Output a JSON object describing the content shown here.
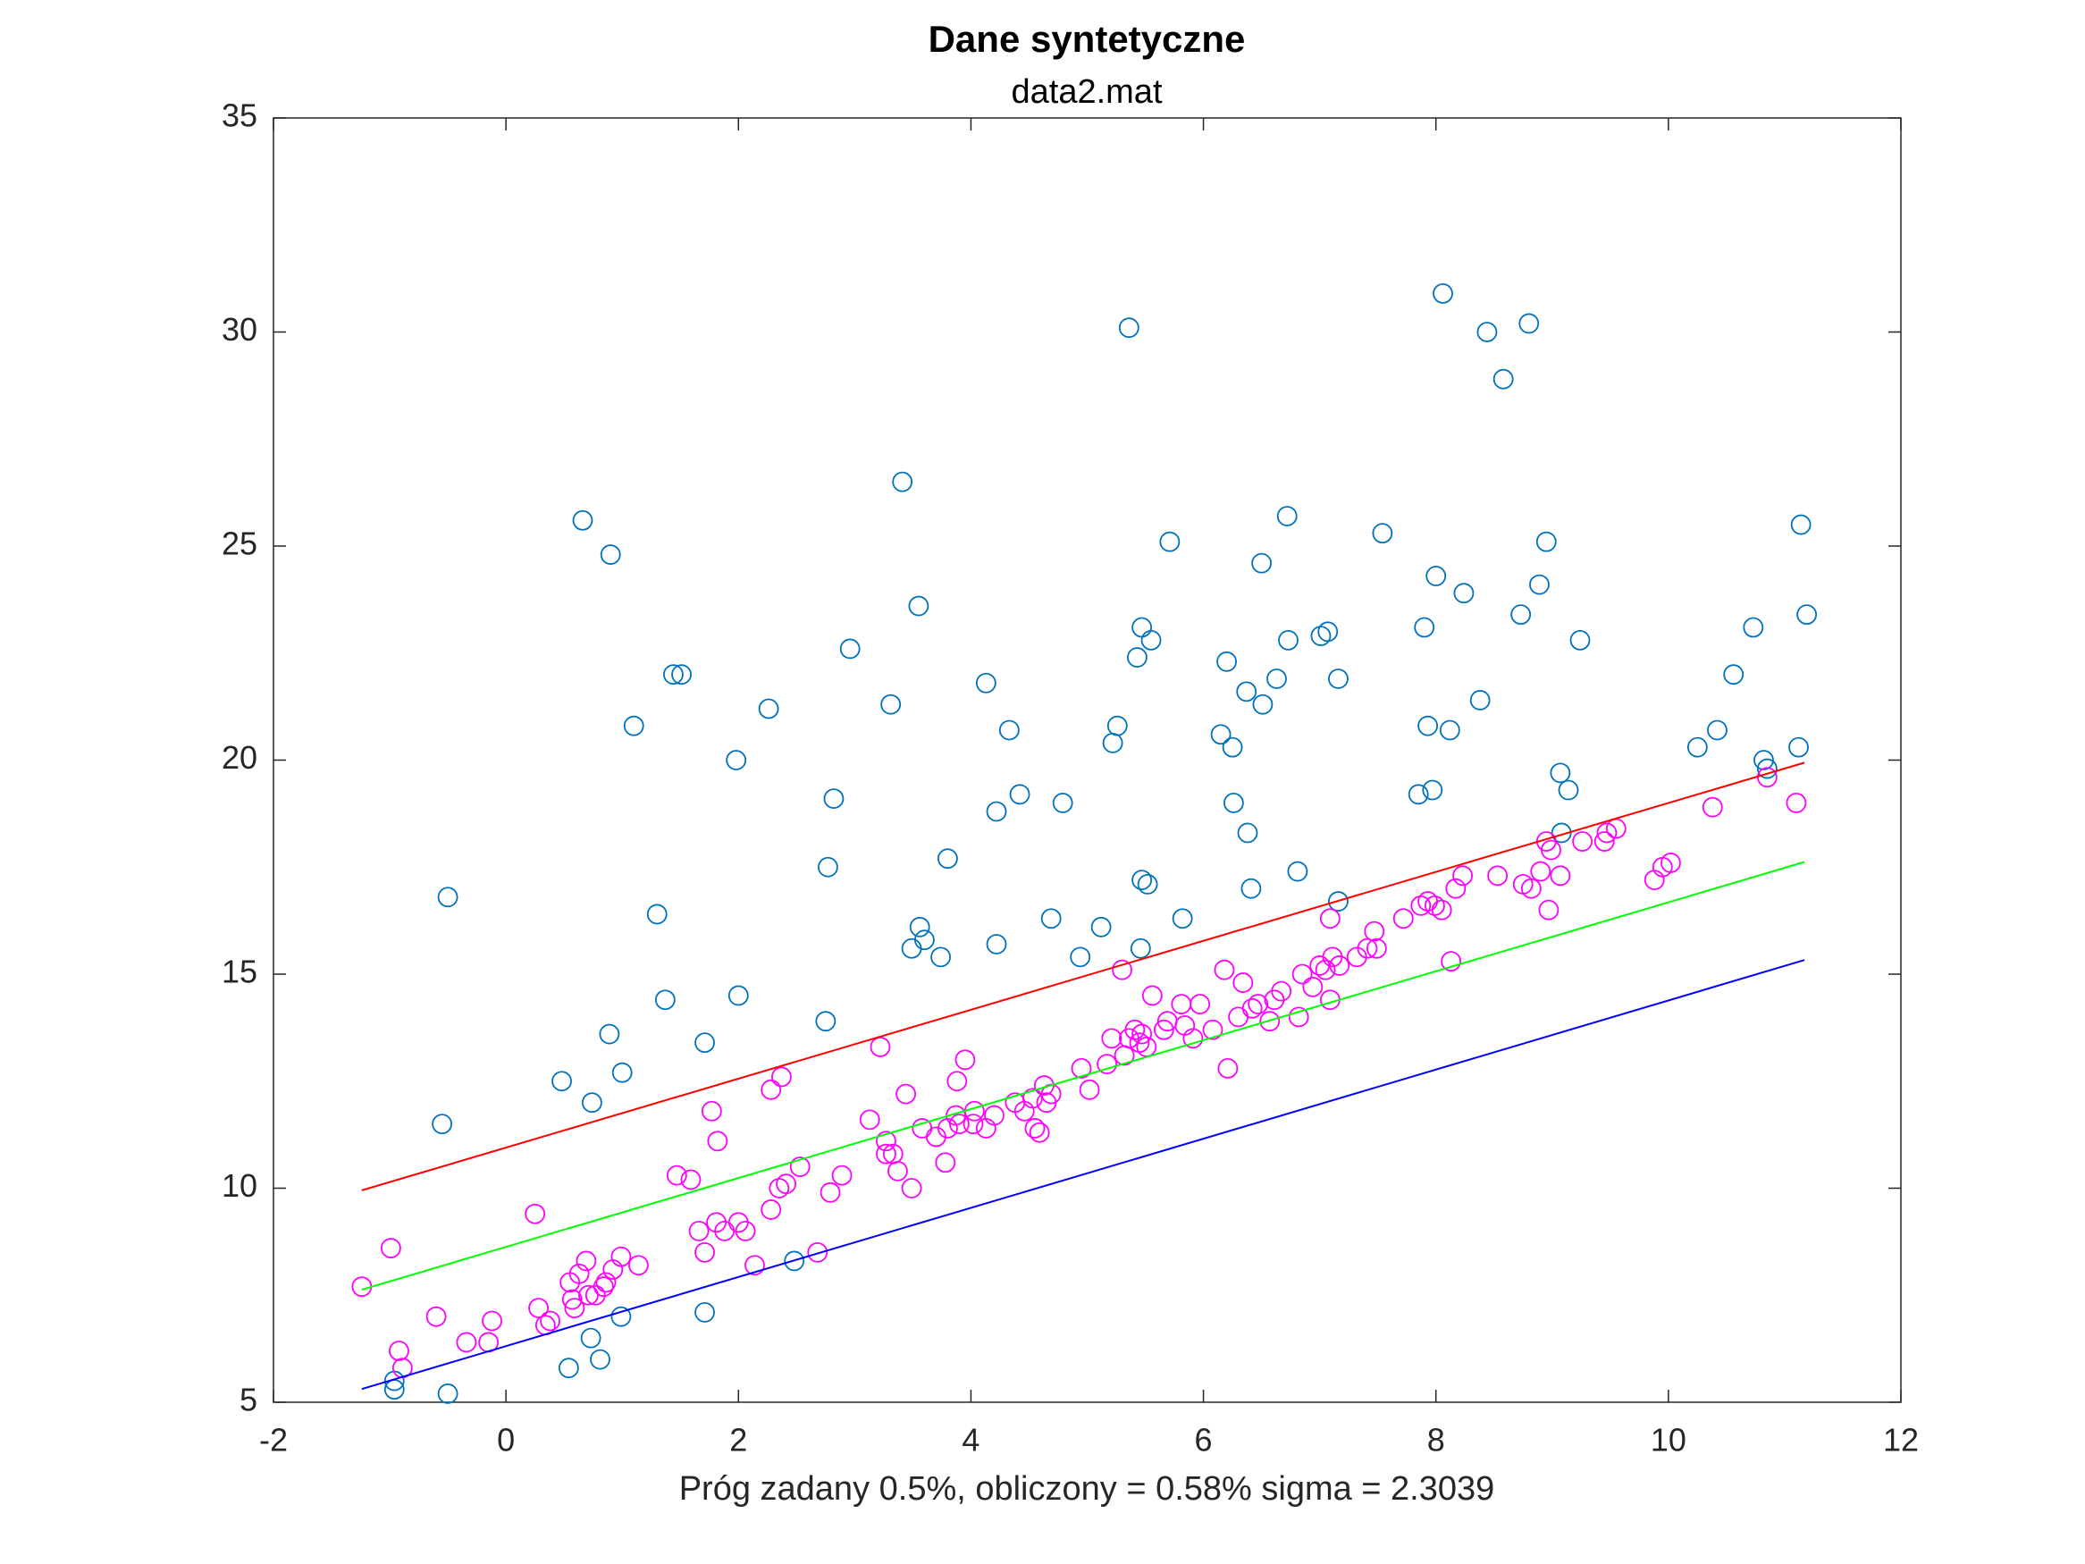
{
  "chart_data": {
    "type": "scatter",
    "title": "Dane syntetyczne",
    "subtitle": "data2.mat",
    "x_label": "Próg zadany 0.5%, obliczony = 0.58% sigma = 2.3039",
    "xlim": [
      -2,
      12
    ],
    "ylim": [
      5,
      35
    ],
    "xticks": [
      -2,
      0,
      2,
      4,
      6,
      8,
      10,
      12
    ],
    "yticks": [
      5,
      10,
      15,
      20,
      25,
      30,
      35
    ],
    "box": true,
    "series": [
      {
        "style": "circle",
        "color": "#0072bd",
        "x": [
          -0.5,
          -0.55,
          -0.96,
          -0.96,
          -0.5,
          0.66,
          0.9,
          0.48,
          0.74,
          0.89,
          1.0,
          1.1,
          1.44,
          1.51,
          1.3,
          1.37,
          1.98,
          2.0,
          1.71,
          1.71,
          0.73,
          0.54,
          0.81,
          0.99,
          2.26,
          2.48,
          2.96,
          2.82,
          2.77,
          2.75,
          3.41,
          3.55,
          3.31,
          3.8,
          3.56,
          3.6,
          3.49,
          3.74,
          4.13,
          4.33,
          4.42,
          4.22,
          4.22,
          4.79,
          4.69,
          4.94,
          5.12,
          5.36,
          5.26,
          5.22,
          5.47,
          5.43,
          5.55,
          5.71,
          5.47,
          5.52,
          5.46,
          5.82,
          6.2,
          6.15,
          6.25,
          6.26,
          6.5,
          6.37,
          6.51,
          6.63,
          6.38,
          6.41,
          6.72,
          6.73,
          7.07,
          7.01,
          7.16,
          6.81,
          7.16,
          7.54,
          8.06,
          8.44,
          8.8,
          8.58,
          8.0,
          8.24,
          7.9,
          8.73,
          8.95,
          8.89,
          9.24,
          8.38,
          7.93,
          8.12,
          7.97,
          7.85,
          9.07,
          9.14,
          9.08,
          11.14,
          11.19,
          10.73,
          10.56,
          10.42,
          10.25,
          11.12,
          10.82,
          10.85
        ],
        "values": [
          16.8,
          11.5,
          5.3,
          5.5,
          5.2,
          25.6,
          24.8,
          12.5,
          12.0,
          13.6,
          12.7,
          20.8,
          22.0,
          22.0,
          16.4,
          14.4,
          20.0,
          14.5,
          13.4,
          7.1,
          6.5,
          5.8,
          6.0,
          7.0,
          21.2,
          8.3,
          22.6,
          19.1,
          17.5,
          13.9,
          26.5,
          23.6,
          21.3,
          17.7,
          16.1,
          15.8,
          15.6,
          15.4,
          21.8,
          20.7,
          19.2,
          18.8,
          15.7,
          19.0,
          16.3,
          15.4,
          16.1,
          30.1,
          20.8,
          20.4,
          23.1,
          22.4,
          22.8,
          25.1,
          17.2,
          17.1,
          15.6,
          16.3,
          22.3,
          20.6,
          20.3,
          19.0,
          24.6,
          21.6,
          21.3,
          21.9,
          18.3,
          17.0,
          25.7,
          22.8,
          23.0,
          22.9,
          21.9,
          17.4,
          16.7,
          25.3,
          30.9,
          30.0,
          30.2,
          28.9,
          24.3,
          23.9,
          23.1,
          23.4,
          25.1,
          24.1,
          22.8,
          21.4,
          20.8,
          20.7,
          19.3,
          19.2,
          19.7,
          19.3,
          18.3,
          25.5,
          23.4,
          23.1,
          22.0,
          20.7,
          20.3,
          20.3,
          20.0,
          19.8
        ]
      },
      {
        "style": "circle",
        "color": "#ff00ff",
        "x": [
          -1.24,
          -0.99,
          -0.92,
          -0.89,
          -0.6,
          -0.34,
          -0.15,
          -0.12,
          0.25,
          0.28,
          0.34,
          0.38,
          0.55,
          0.57,
          0.59,
          0.63,
          0.69,
          0.71,
          0.77,
          0.84,
          0.86,
          0.92,
          0.99,
          1.14,
          1.47,
          1.59,
          1.66,
          1.71,
          1.77,
          1.82,
          1.81,
          1.88,
          2.0,
          2.06,
          2.14,
          2.28,
          2.37,
          2.28,
          2.35,
          2.41,
          2.53,
          2.68,
          2.79,
          2.89,
          3.13,
          3.22,
          3.27,
          3.27,
          3.33,
          3.37,
          3.44,
          3.49,
          3.58,
          3.7,
          3.78,
          3.8,
          3.87,
          3.88,
          3.9,
          3.95,
          4.02,
          4.03,
          4.13,
          4.2,
          4.38,
          4.46,
          4.53,
          4.55,
          4.59,
          4.63,
          4.65,
          4.69,
          4.95,
          5.02,
          5.17,
          5.21,
          5.3,
          5.32,
          5.36,
          5.41,
          5.45,
          5.47,
          5.51,
          5.56,
          5.66,
          5.69,
          5.81,
          5.84,
          5.91,
          5.97,
          6.08,
          6.18,
          6.21,
          6.3,
          6.34,
          6.42,
          6.47,
          6.57,
          6.61,
          6.67,
          6.82,
          6.85,
          6.94,
          7.0,
          7.05,
          7.09,
          7.11,
          7.17,
          7.09,
          7.32,
          7.41,
          7.47,
          7.49,
          7.72,
          7.87,
          7.93,
          7.99,
          8.05,
          8.13,
          8.17,
          8.23,
          8.53,
          8.75,
          8.82,
          8.9,
          8.95,
          8.97,
          8.99,
          9.07,
          9.26,
          9.45,
          9.47,
          9.55,
          9.88,
          9.95,
          10.02,
          10.38,
          10.85,
          11.1
        ],
        "values": [
          7.7,
          8.6,
          6.2,
          5.8,
          7.0,
          6.4,
          6.4,
          6.9,
          9.4,
          7.2,
          6.8,
          6.9,
          7.8,
          7.4,
          7.2,
          8.0,
          8.3,
          7.5,
          7.5,
          7.7,
          7.8,
          8.1,
          8.4,
          8.2,
          10.3,
          10.2,
          9.0,
          8.5,
          11.8,
          11.1,
          9.2,
          9.0,
          9.2,
          9.0,
          8.2,
          12.3,
          12.6,
          9.5,
          10.0,
          10.1,
          10.5,
          8.5,
          9.9,
          10.3,
          11.6,
          13.3,
          11.1,
          10.8,
          10.8,
          10.4,
          12.2,
          10.0,
          11.4,
          11.2,
          10.6,
          11.4,
          11.7,
          12.5,
          11.5,
          13.0,
          11.5,
          11.8,
          11.4,
          11.7,
          12.0,
          11.8,
          12.1,
          11.4,
          11.3,
          12.4,
          12.0,
          12.2,
          12.8,
          12.3,
          12.9,
          13.5,
          15.1,
          13.1,
          13.5,
          13.7,
          13.4,
          13.6,
          13.3,
          14.5,
          13.7,
          13.9,
          14.3,
          13.8,
          13.5,
          14.3,
          13.7,
          15.1,
          12.8,
          14.0,
          14.8,
          14.2,
          14.3,
          13.9,
          14.4,
          14.6,
          14.0,
          15.0,
          14.7,
          15.2,
          15.1,
          14.4,
          15.4,
          15.2,
          16.3,
          15.4,
          15.6,
          16.0,
          15.6,
          16.3,
          16.6,
          16.7,
          16.6,
          16.5,
          15.3,
          17.0,
          17.3,
          17.3,
          17.1,
          17.0,
          17.4,
          18.1,
          16.5,
          17.9,
          17.3,
          18.1,
          18.1,
          18.3,
          18.4,
          17.2,
          17.5,
          17.6,
          18.9,
          19.6,
          19.0
        ]
      },
      {
        "style": "line",
        "color": "#ff0000",
        "x": [
          -1.24,
          11.17
        ],
        "values": [
          9.95,
          19.94
        ]
      },
      {
        "style": "line",
        "color": "#00ff00",
        "x": [
          -1.24,
          11.17
        ],
        "values": [
          7.63,
          17.62
        ]
      },
      {
        "style": "line",
        "color": "#0000ff",
        "x": [
          -1.24,
          11.17
        ],
        "values": [
          5.31,
          15.33
        ]
      }
    ]
  }
}
